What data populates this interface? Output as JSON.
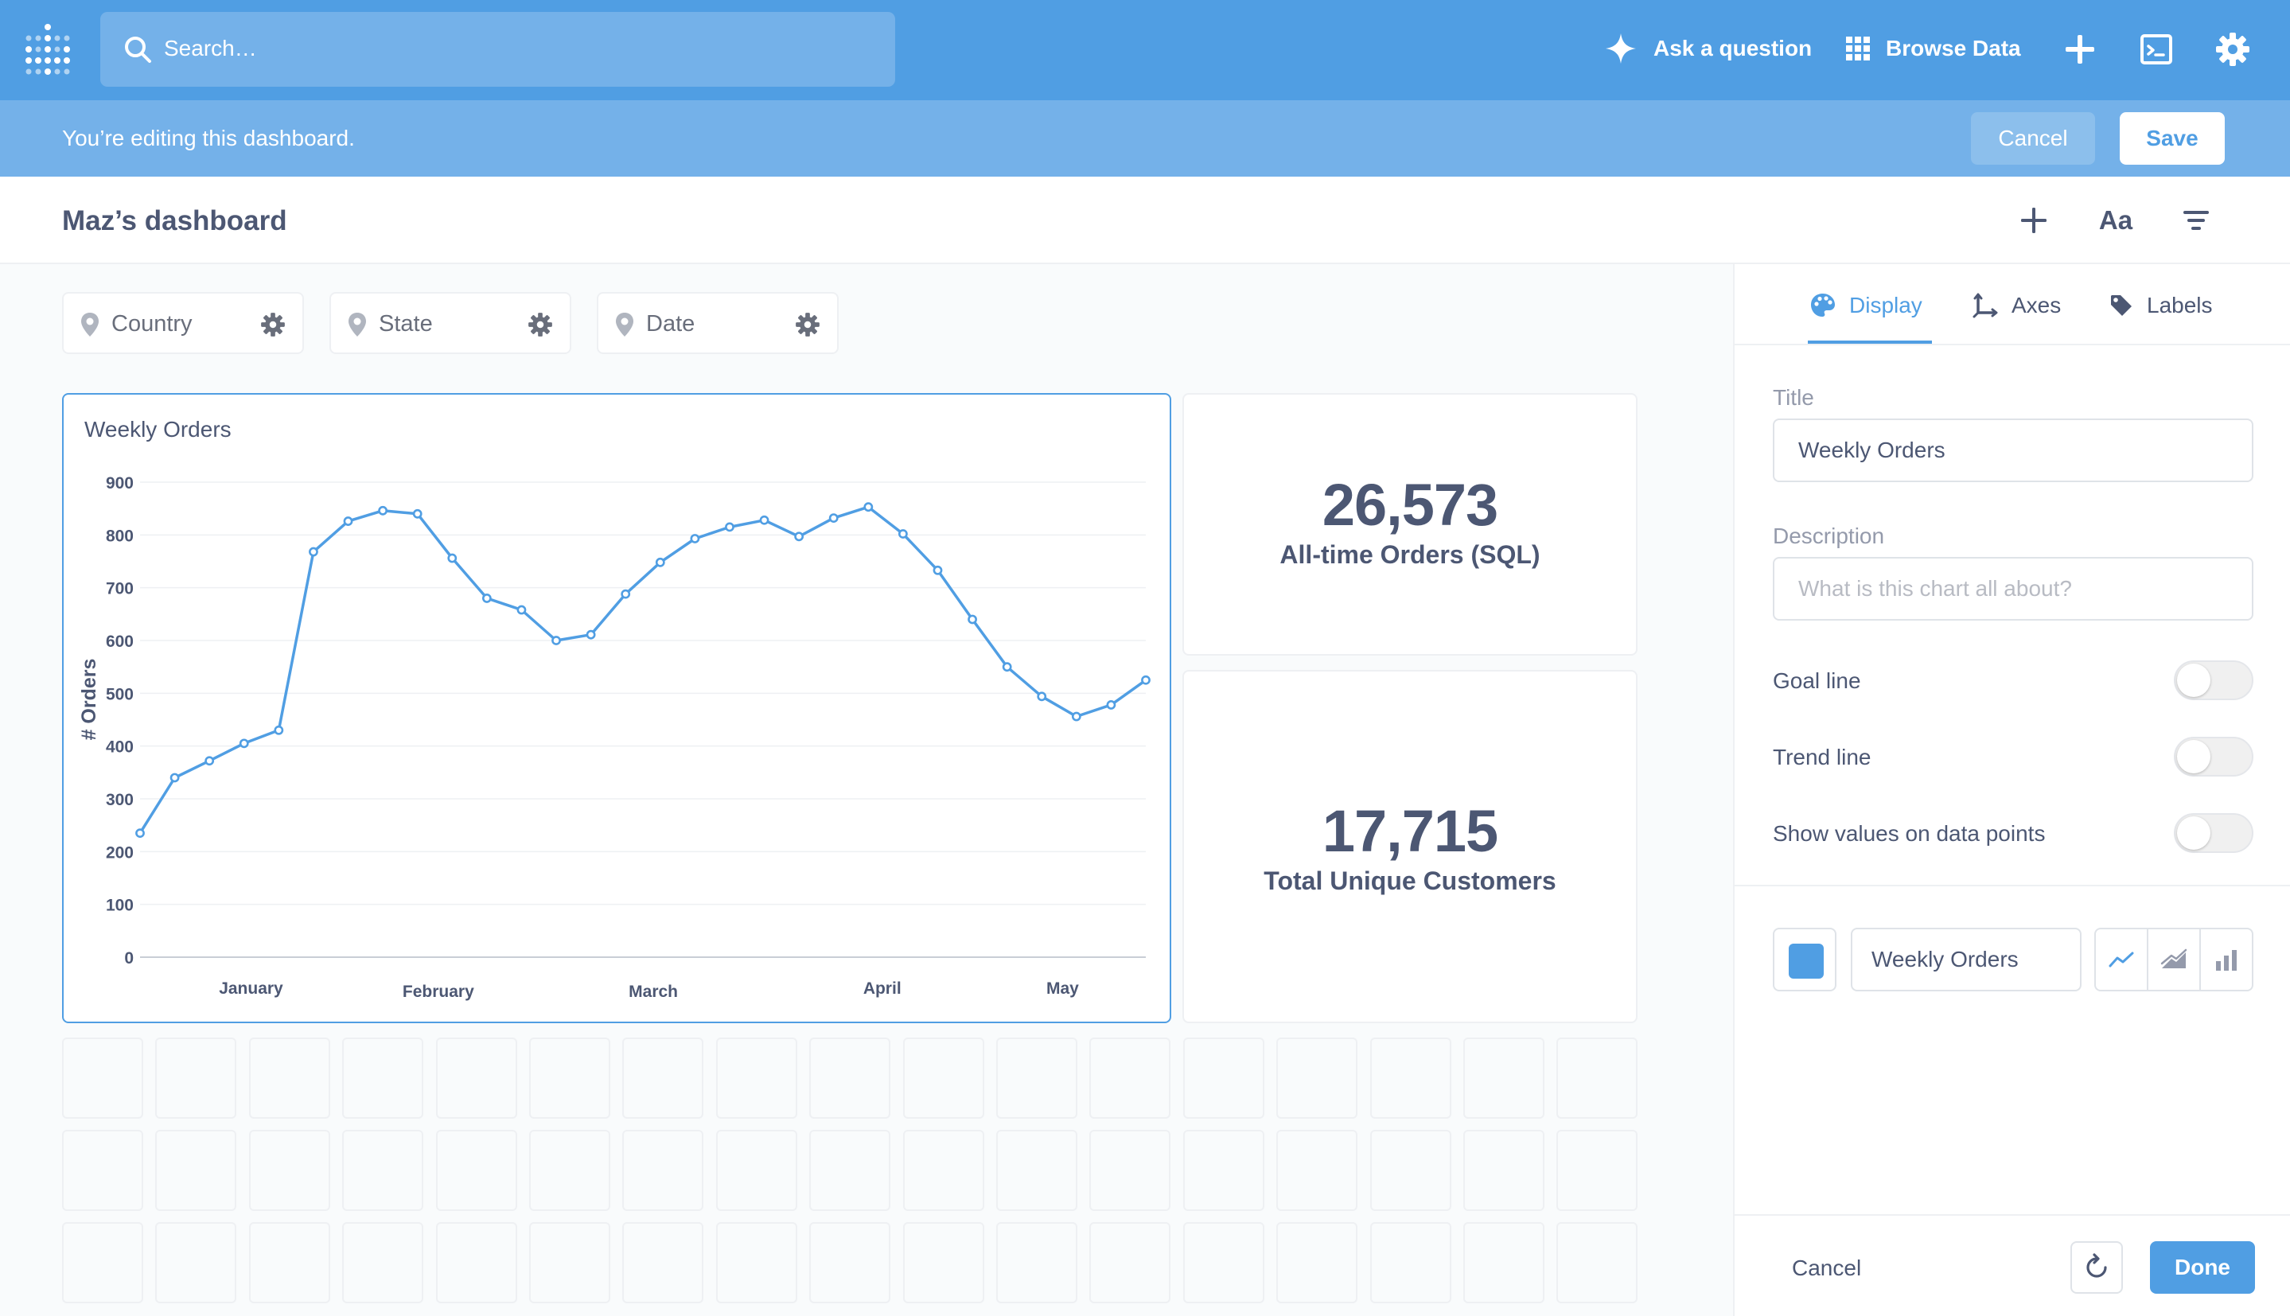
{
  "topnav": {
    "search_placeholder": "Search…",
    "ask_question_label": "Ask a question",
    "browse_data_label": "Browse Data"
  },
  "editbar": {
    "message": "You’re editing this dashboard.",
    "cancel_label": "Cancel",
    "save_label": "Save"
  },
  "header": {
    "title": "Maz’s dashboard",
    "text_tool_label": "Aa"
  },
  "filters": [
    {
      "label": "Country"
    },
    {
      "label": "State"
    },
    {
      "label": "Date"
    }
  ],
  "cards": {
    "chart_title": "Weekly Orders",
    "scalar1": {
      "value": "26,573",
      "caption": "All-time Orders (SQL)"
    },
    "scalar2": {
      "value": "17,715",
      "caption": "Total Unique Customers"
    }
  },
  "chart_data": {
    "type": "line",
    "title": "Weekly Orders",
    "xlabel": "",
    "ylabel": "# Orders",
    "ylim": [
      0,
      900
    ],
    "yticks": [
      0,
      100,
      200,
      300,
      400,
      500,
      600,
      700,
      800,
      900
    ],
    "month_labels": [
      "January",
      "February",
      "March",
      "April",
      "May"
    ],
    "grid": true,
    "series": [
      {
        "values": [
          235,
          340,
          372,
          405,
          430,
          768,
          826,
          846,
          840,
          756,
          680,
          658,
          600,
          611,
          688,
          748,
          793,
          815,
          828,
          797,
          832,
          853,
          802,
          733,
          640,
          550,
          494,
          456,
          478,
          525
        ],
        "color": "#509ee3"
      }
    ]
  },
  "sidebar": {
    "tabs": [
      {
        "label": "Display"
      },
      {
        "label": "Axes"
      },
      {
        "label": "Labels"
      }
    ],
    "title_label": "Title",
    "title_value": "Weekly Orders",
    "description_label": "Description",
    "description_placeholder": "What is this chart all about?",
    "toggles": [
      {
        "label": "Goal line",
        "on": false
      },
      {
        "label": "Trend line",
        "on": false
      },
      {
        "label": "Show values on data points",
        "on": false
      }
    ],
    "series_name": "Weekly Orders",
    "series_color": "#509ee3",
    "cancel_label": "Cancel",
    "done_label": "Done"
  }
}
